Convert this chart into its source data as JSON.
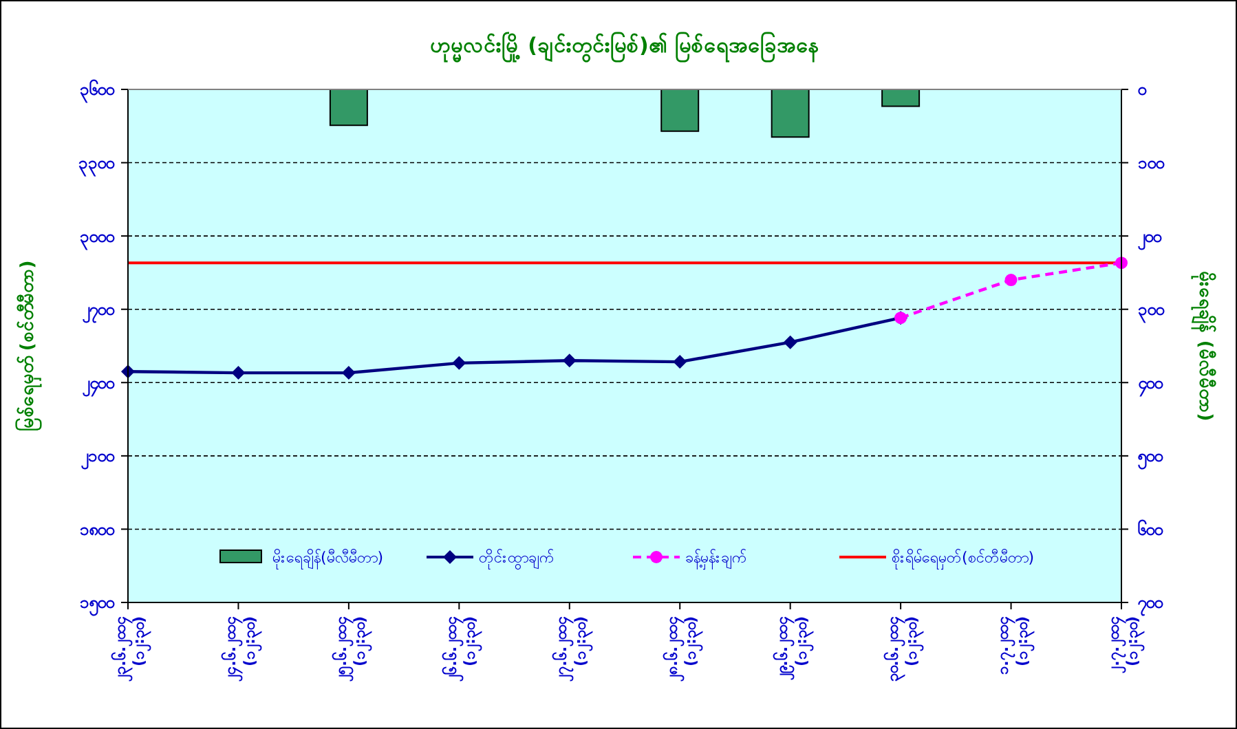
{
  "chart_data": {
    "type": "line",
    "title": "ဟုမ္မလင်းမြို့ (ချင်းတွင်းမြစ်)၏ မြစ်ရေအခြေအနေ",
    "ylabel": "မြစ်ရေမှတ် (စင်တီမီတာ)",
    "y2label": "မိုးရေချိန် (မီလီမီတာ)",
    "categories": [
      "၂၃.၆.၂၀၁၄ (၁၂:၃၀)",
      "၂၄.၆.၂၀၁၄ (၁၂:၃၀)",
      "၂၅.၆.၂၀၁၄ (၁၂:၃၀)",
      "၂၆.၆.၂၀၁၄ (၁၂:၃၀)",
      "၂၇.၆.၂၀၁၄ (၁၂:၃၀)",
      "၂၈.၆.၂၀၁၄ (၁၂:၃၀)",
      "၂၉.၆.၂၀၁၄ (၁၂:၃၀)",
      "၃၀.၆.၂၀၁၄ (၁၂:၃၀)",
      "၁.၇.၂၀၁၄ (၁၂:၃၀)",
      "၂.၇.၂၀၁၄ (၁၂:၃၀)"
    ],
    "series": [
      {
        "name": "မိုးရေချိန်(မီလီမီတာ)",
        "type": "bar",
        "axis": "y2",
        "color": "#339966",
        "values": [
          null,
          null,
          49,
          null,
          null,
          57,
          65,
          23,
          null,
          null
        ]
      },
      {
        "name": "တိုင်းထွာချက်",
        "color": "#000080",
        "marker": "diamond",
        "line_style": "solid",
        "values": [
          2445,
          2440,
          2440,
          2480,
          2490,
          2485,
          2565,
          2665,
          null,
          null
        ]
      },
      {
        "name": "ခန့်မှန်းချက်",
        "color": "#ff00ff",
        "marker": "circle",
        "line_style": "dashed",
        "values": [
          null,
          null,
          null,
          null,
          null,
          null,
          null,
          2665,
          2820,
          2890
        ]
      }
    ],
    "ref_lines": [
      {
        "axis": "y",
        "value": 2890,
        "label": "စိုးရိမ်ရေမှတ်(စင်တီမီတာ)",
        "color": "#ff0000"
      }
    ],
    "ylim": [
      1500,
      3600
    ],
    "yticks": [
      {
        "value": 1500,
        "label": "၁၅၀၀"
      },
      {
        "value": 1800,
        "label": "၁၈၀၀"
      },
      {
        "value": 2100,
        "label": "၂၁၀၀"
      },
      {
        "value": 2400,
        "label": "၂၄၀၀"
      },
      {
        "value": 2700,
        "label": "၂၇၀၀"
      },
      {
        "value": 3000,
        "label": "၃၀၀၀"
      },
      {
        "value": 3300,
        "label": "၃၃၀၀"
      },
      {
        "value": 3600,
        "label": "၃၆၀၀"
      }
    ],
    "y2lim": [
      700,
      0
    ],
    "y2ticks": [
      {
        "value": 0,
        "label": "၀"
      },
      {
        "value": 100,
        "label": "၁၀၀"
      },
      {
        "value": 200,
        "label": "၂၀၀"
      },
      {
        "value": 300,
        "label": "၃၀၀"
      },
      {
        "value": 400,
        "label": "၄၀၀"
      },
      {
        "value": 500,
        "label": "၅၀၀"
      },
      {
        "value": 600,
        "label": "၆၀၀"
      },
      {
        "value": 700,
        "label": "၇၀၀"
      }
    ],
    "grid": "y",
    "legend": "bottom"
  }
}
